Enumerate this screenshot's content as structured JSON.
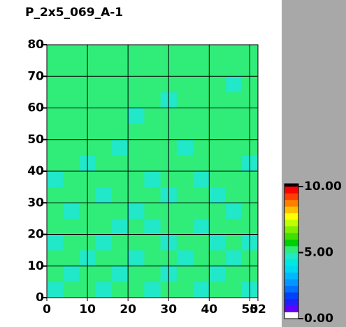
{
  "chart_data": {
    "type": "heatmap",
    "title": "P_2x5_069_A-1",
    "xlim": [
      0,
      52
    ],
    "xticks": [
      0,
      10,
      20,
      30,
      40,
      50,
      52
    ],
    "ylim": [
      0,
      80
    ],
    "yticks": [
      0,
      10,
      20,
      30,
      40,
      50,
      60,
      70,
      80
    ],
    "grid": true,
    "z": [
      [
        4.8,
        5.2,
        5.1,
        4.9,
        5.3,
        5.2,
        4.8,
        5.1,
        5.2,
        4.9,
        5.3,
        5.1,
        4.8
      ],
      [
        5.1,
        4.9,
        5.2,
        5.3,
        4.8,
        5.1,
        5.2,
        4.9,
        5.1,
        5.3,
        4.8,
        5.2,
        5.1
      ],
      [
        5.2,
        5.1,
        4.8,
        5.2,
        5.1,
        4.9,
        5.3,
        5.2,
        4.8,
        5.1,
        5.2,
        4.9,
        5.2
      ],
      [
        4.9,
        5.3,
        5.1,
        4.8,
        5.2,
        5.3,
        5.1,
        4.8,
        5.2,
        5.1,
        4.9,
        5.3,
        4.9
      ],
      [
        5.3,
        5.1,
        5.2,
        5.1,
        4.9,
        5.2,
        4.8,
        5.1,
        5.3,
        4.8,
        5.2,
        5.1,
        5.2
      ],
      [
        5.1,
        4.8,
        5.3,
        5.2,
        5.1,
        4.8,
        5.2,
        5.3,
        5.1,
        5.2,
        5.1,
        4.8,
        5.1
      ],
      [
        5.2,
        5.3,
        5.1,
        4.9,
        5.3,
        5.1,
        5.1,
        4.9,
        5.2,
        5.3,
        4.9,
        5.2,
        5.3
      ],
      [
        4.9,
        5.1,
        5.2,
        5.3,
        5.2,
        5.3,
        4.9,
        5.2,
        5.1,
        4.9,
        5.3,
        5.1,
        5.2
      ],
      [
        5.2,
        5.3,
        4.9,
        5.1,
        5.2,
        5.1,
        5.3,
        5.1,
        5.3,
        5.2,
        5.1,
        5.3,
        4.9
      ],
      [
        5.3,
        5.1,
        5.2,
        5.3,
        4.9,
        5.2,
        5.1,
        5.3,
        4.9,
        5.1,
        5.2,
        5.1,
        5.3
      ],
      [
        5.1,
        5.2,
        5.3,
        5.1,
        5.3,
        5.3,
        5.2,
        5.1,
        5.2,
        5.3,
        5.1,
        5.2,
        5.1
      ],
      [
        5.3,
        5.1,
        5.1,
        5.2,
        5.1,
        4.9,
        5.3,
        5.2,
        5.3,
        5.1,
        5.3,
        5.3,
        5.2
      ],
      [
        5.2,
        5.3,
        5.2,
        5.3,
        5.2,
        5.1,
        5.2,
        4.9,
        5.1,
        5.2,
        5.1,
        5.2,
        5.3
      ],
      [
        5.1,
        5.2,
        5.3,
        5.1,
        5.3,
        5.2,
        5.1,
        5.3,
        5.2,
        5.3,
        5.2,
        4.9,
        5.1
      ],
      [
        5.3,
        5.1,
        5.2,
        5.2,
        5.1,
        5.3,
        5.3,
        5.1,
        5.3,
        5.1,
        5.3,
        5.2,
        5.2
      ],
      [
        5.2,
        5.3,
        5.1,
        5.3,
        5.2,
        5.1,
        5.2,
        5.3,
        5.1,
        5.2,
        5.1,
        5.3,
        5.1
      ]
    ],
    "colorbar": {
      "lim": [
        0,
        10
      ],
      "ticks": [
        {
          "value": 0,
          "label": "0.00"
        },
        {
          "value": 5,
          "label": "5.00"
        },
        {
          "value": 10,
          "label": "10.00"
        }
      ],
      "colors": [
        "#ffffff",
        "#6000ff",
        "#2020ff",
        "#0040ff",
        "#0070ff",
        "#0098ff",
        "#00b8ff",
        "#00d8f0",
        "#00e8e0",
        "#20e8c8",
        "#30ec78",
        "#00d000",
        "#40e000",
        "#80f000",
        "#c0ff00",
        "#ffff00",
        "#ffc000",
        "#ff8000",
        "#ff4000",
        "#ff0000"
      ]
    }
  }
}
